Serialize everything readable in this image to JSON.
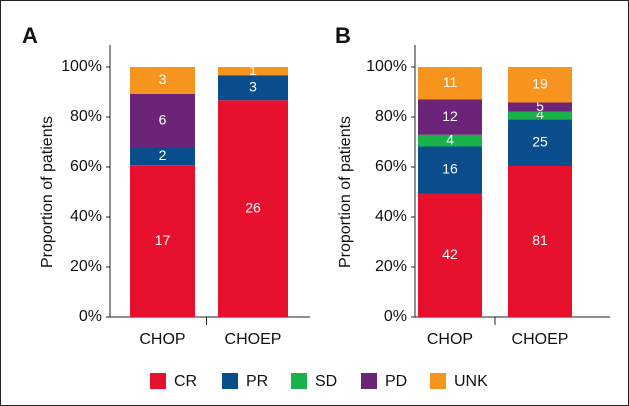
{
  "legend": [
    {
      "name": "CR",
      "color": "#e8112d"
    },
    {
      "name": "PR",
      "color": "#0a4d8c"
    },
    {
      "name": "SD",
      "color": "#19b24a"
    },
    {
      "name": "PD",
      "color": "#6b2477"
    },
    {
      "name": "UNK",
      "color": "#f7941d"
    }
  ],
  "chart_data": [
    {
      "type": "stacked_bar",
      "panel": "A",
      "ylabel": "Proportion of patients",
      "categories": [
        "CHOP",
        "CHOEP"
      ],
      "ylim": [
        0,
        100
      ],
      "yticks": [
        {
          "value": 0,
          "label": "0%"
        },
        {
          "value": 20,
          "label": "20%"
        },
        {
          "value": 40,
          "label": "40%"
        },
        {
          "value": 60,
          "label": "60%"
        },
        {
          "value": 80,
          "label": "80%"
        },
        {
          "value": 100,
          "label": "100%"
        }
      ],
      "series": [
        {
          "values": [
            60.7,
            86.7
          ],
          "counts": [
            17,
            26
          ]
        },
        {
          "values": [
            7.1,
            10.0
          ],
          "counts": [
            2,
            3
          ]
        },
        {
          "values": [
            null,
            null
          ],
          "counts": [
            null,
            null
          ]
        },
        {
          "values": [
            21.4,
            null
          ],
          "counts": [
            6,
            null
          ]
        },
        {
          "values": [
            10.8,
            3.3
          ],
          "counts": [
            3,
            1
          ]
        }
      ]
    },
    {
      "type": "stacked_bar",
      "panel": "B",
      "ylabel": "Proportion of patients",
      "categories": [
        "CHOP",
        "CHOEP"
      ],
      "ylim": [
        0,
        100
      ],
      "yticks": [
        {
          "value": 0,
          "label": "0%"
        },
        {
          "value": 20,
          "label": "20%"
        },
        {
          "value": 40,
          "label": "40%"
        },
        {
          "value": 60,
          "label": "60%"
        },
        {
          "value": 80,
          "label": "80%"
        },
        {
          "value": 100,
          "label": "100%"
        }
      ],
      "series": [
        {
          "values": [
            49.4,
            60.4
          ],
          "counts": [
            42,
            81
          ]
        },
        {
          "values": [
            18.8,
            18.7
          ],
          "counts": [
            16,
            25
          ]
        },
        {
          "values": [
            4.7,
            3.0
          ],
          "counts": [
            4,
            4
          ]
        },
        {
          "values": [
            14.1,
            3.7
          ],
          "counts": [
            12,
            5
          ]
        },
        {
          "values": [
            13.0,
            14.2
          ],
          "counts": [
            11,
            19
          ]
        }
      ]
    }
  ]
}
